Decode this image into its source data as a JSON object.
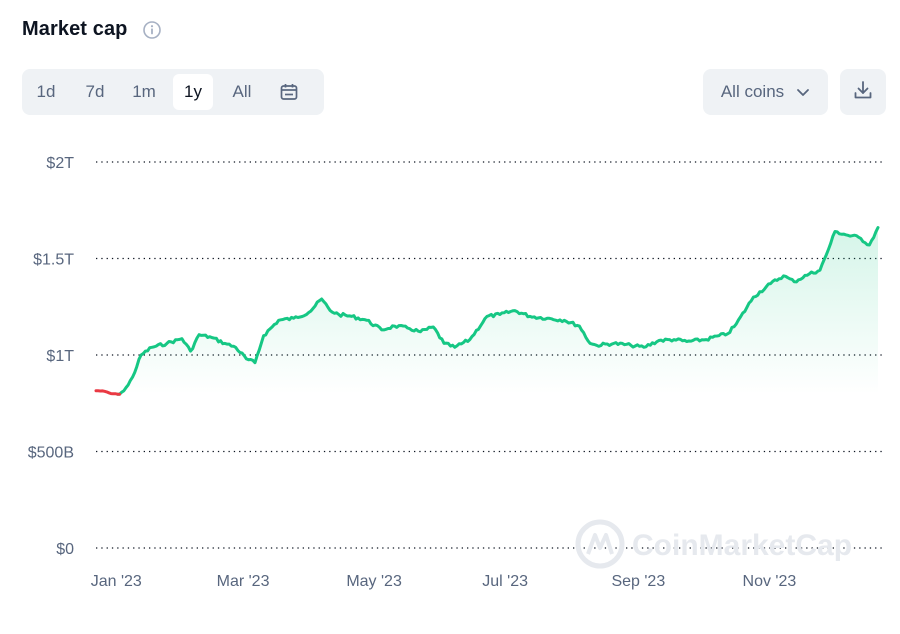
{
  "header": {
    "title": "Market cap",
    "info_icon": "info-icon"
  },
  "range_tabs": [
    {
      "label": "1d",
      "active": false
    },
    {
      "label": "7d",
      "active": false
    },
    {
      "label": "1m",
      "active": false
    },
    {
      "label": "1y",
      "active": true
    },
    {
      "label": "All",
      "active": false
    }
  ],
  "calendar_icon": "calendar-icon",
  "coins_filter": {
    "label": "All coins",
    "icon": "chevron-down-icon"
  },
  "download_icon": "download-icon",
  "watermark": "CoinMarketCap",
  "colors": {
    "up": "#16c784",
    "down": "#ea3943",
    "grid": "#0d1421",
    "axis_text": "#58667e"
  },
  "chart_data": {
    "type": "area",
    "title": "Market cap",
    "xlabel": "",
    "ylabel": "",
    "grid": true,
    "x_tick_labels": [
      "Jan '23",
      "Mar '23",
      "May '23",
      "Jul '23",
      "Sep '23",
      "Nov '23"
    ],
    "y_tick_labels": [
      "$2T",
      "$1.5T",
      "$1T",
      "$500B",
      "$0"
    ],
    "y_tick_values": [
      2000,
      1500,
      1000,
      500,
      0
    ],
    "ylim": [
      0,
      2000
    ],
    "x_range": [
      "2022-12-30",
      "2023-12-29"
    ],
    "y_unit": "billion USD",
    "series": [
      {
        "x": [
          "2022-12-30",
          "2023-01-03",
          "2023-01-06",
          "2023-01-09",
          "2023-01-12",
          "2023-01-14",
          "2023-01-16",
          "2023-01-20",
          "2023-01-25",
          "2023-02-01",
          "2023-02-08",
          "2023-02-12",
          "2023-02-16",
          "2023-02-22",
          "2023-02-28",
          "2023-03-05",
          "2023-03-10",
          "2023-03-14",
          "2023-03-18",
          "2023-03-25",
          "2023-04-01",
          "2023-04-08",
          "2023-04-14",
          "2023-04-18",
          "2023-04-22",
          "2023-04-28",
          "2023-05-05",
          "2023-05-12",
          "2023-05-18",
          "2023-05-24",
          "2023-05-30",
          "2023-06-05",
          "2023-06-10",
          "2023-06-15",
          "2023-06-22",
          "2023-06-30",
          "2023-07-06",
          "2023-07-13",
          "2023-07-20",
          "2023-07-28",
          "2023-08-05",
          "2023-08-12",
          "2023-08-17",
          "2023-08-20",
          "2023-08-28",
          "2023-09-05",
          "2023-09-11",
          "2023-09-18",
          "2023-09-25",
          "2023-10-01",
          "2023-10-10",
          "2023-10-16",
          "2023-10-20",
          "2023-10-24",
          "2023-11-01",
          "2023-11-09",
          "2023-11-15",
          "2023-11-20",
          "2023-11-27",
          "2023-12-02",
          "2023-12-05",
          "2023-12-09",
          "2023-12-15",
          "2023-12-20",
          "2023-12-25",
          "2023-12-29"
        ],
        "y": [
          815,
          812,
          800,
          797,
          815,
          845,
          885,
          1000,
          1040,
          1060,
          1085,
          1020,
          1105,
          1090,
          1060,
          1040,
          980,
          960,
          1100,
          1180,
          1190,
          1220,
          1290,
          1230,
          1210,
          1200,
          1180,
          1130,
          1150,
          1140,
          1120,
          1145,
          1060,
          1040,
          1080,
          1200,
          1210,
          1230,
          1200,
          1190,
          1180,
          1150,
          1060,
          1050,
          1060,
          1050,
          1040,
          1075,
          1080,
          1070,
          1080,
          1100,
          1110,
          1160,
          1300,
          1370,
          1410,
          1380,
          1420,
          1440,
          1520,
          1640,
          1620,
          1610,
          1570,
          1660
        ]
      }
    ],
    "below_start_segment": [
      "2022-12-30",
      "2023-01-10"
    ]
  }
}
